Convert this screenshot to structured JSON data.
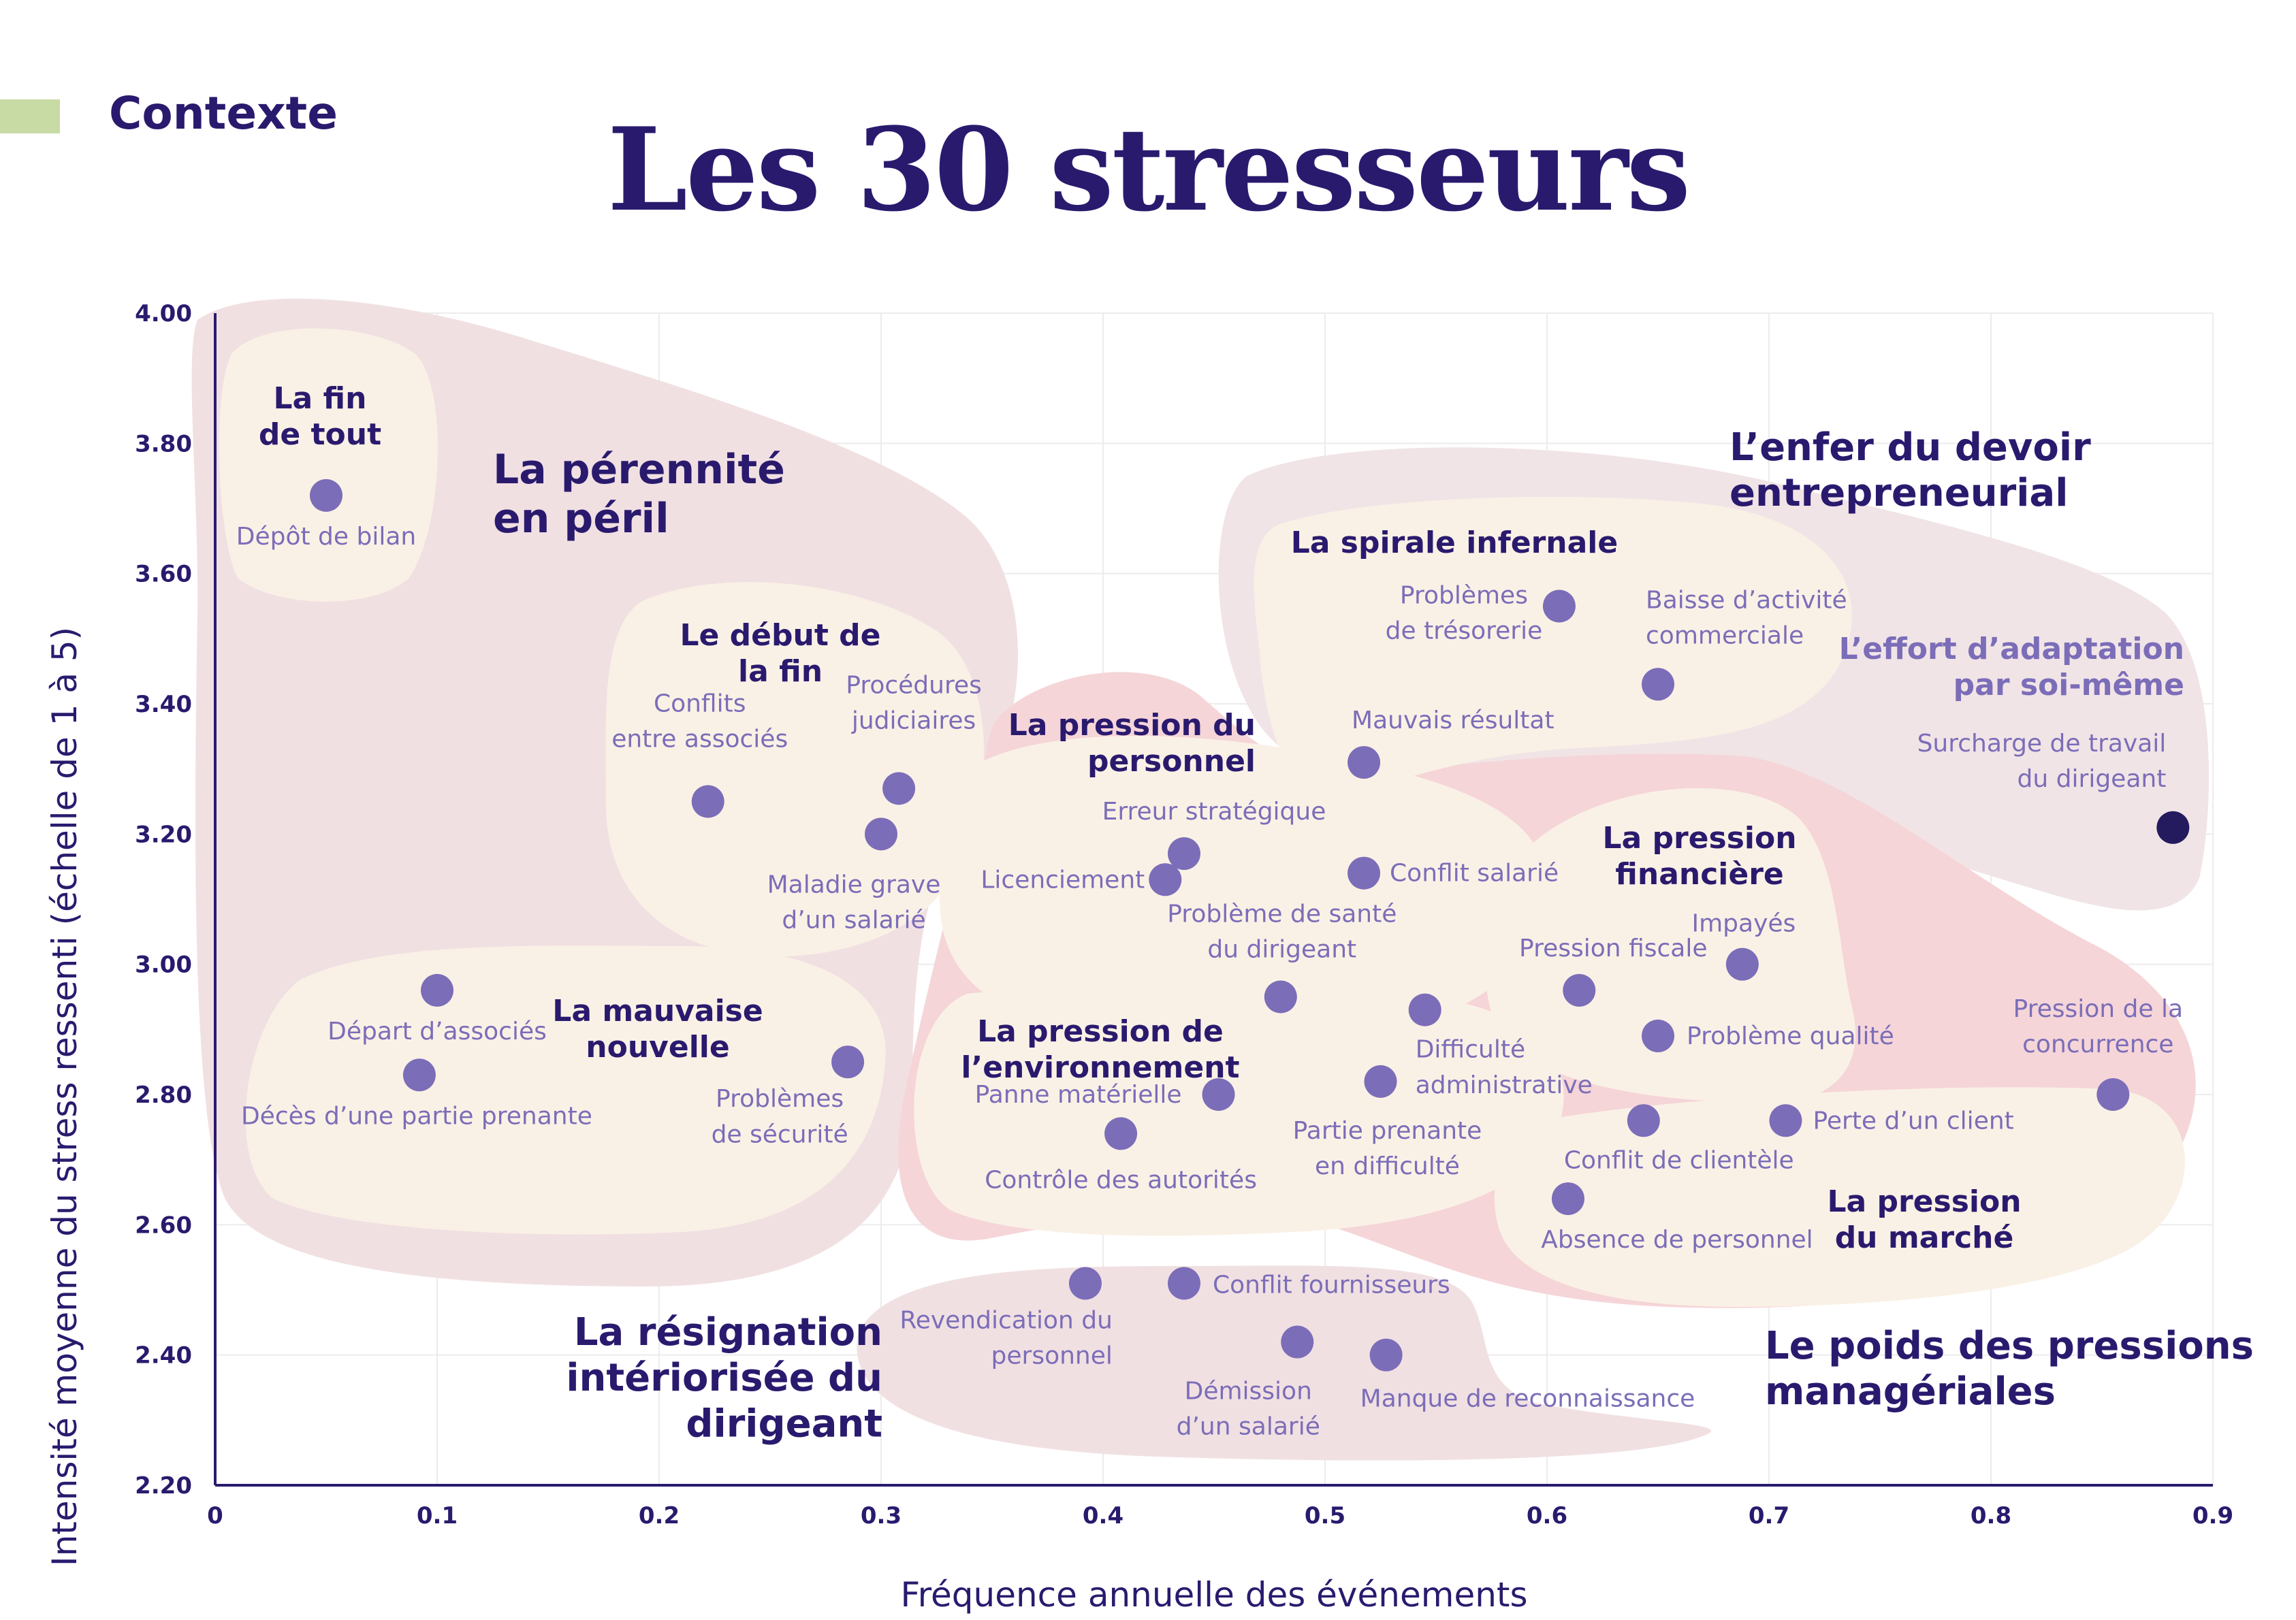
{
  "header": {
    "section": "Contexte",
    "title": "Les 30 stresseurs"
  },
  "colors": {
    "point": "#7b6db8",
    "point_highlight": "#231b5e",
    "text_dark": "#2a1a6e",
    "text_point": "#7b6db8",
    "region_outer": "#f1e0e2",
    "region_pink": "#f5d5d8",
    "region_inner": "#faf1e6",
    "grid": "#ececec",
    "section_bar": "#c9dba4"
  },
  "chart_data": {
    "type": "scatter",
    "title": "Les 30 stresseurs",
    "xlabel": "Fréquence annuelle des événements",
    "ylabel": "Intensité moyenne du stress ressenti (échelle de 1 à 5)",
    "xlim": [
      0,
      0.9
    ],
    "ylim": [
      2.2,
      4.0
    ],
    "x_ticks": [
      "0",
      "0.1",
      "0.2",
      "0.3",
      "0.4",
      "0.5",
      "0.6",
      "0.7",
      "0.8",
      "0.9"
    ],
    "y_ticks": [
      "2.20",
      "2.40",
      "2.60",
      "2.80",
      "3.00",
      "3.20",
      "3.40",
      "3.60",
      "3.80",
      "4.00"
    ],
    "grid": true,
    "points": [
      {
        "label": "Dépôt de bilan",
        "x": 0.05,
        "y": 3.72
      },
      {
        "label": "Conflits entre associés",
        "x": 0.222,
        "y": 3.25
      },
      {
        "label": "Procédures judiciaires",
        "x": 0.308,
        "y": 3.27
      },
      {
        "label": "Maladie grave d’un salarié",
        "x": 0.3,
        "y": 3.2
      },
      {
        "label": "Départ d’associés",
        "x": 0.1,
        "y": 2.96
      },
      {
        "label": "Décès d’une partie prenante",
        "x": 0.092,
        "y": 2.83
      },
      {
        "label": "Problèmes de sécurité",
        "x": 0.285,
        "y": 2.85
      },
      {
        "label": "Problèmes de trésorerie",
        "x": 0.6055,
        "y": 3.55
      },
      {
        "label": "Baisse d’activité commerciale",
        "x": 0.65,
        "y": 3.43
      },
      {
        "label": "Mauvais résultat",
        "x": 0.5175,
        "y": 3.31
      },
      {
        "label": "Surcharge de travail du dirigeant",
        "x": 0.882,
        "y": 3.21,
        "highlight": true
      },
      {
        "label": "Erreur stratégique",
        "x": 0.4365,
        "y": 3.17
      },
      {
        "label": "Licenciement",
        "x": 0.428,
        "y": 3.13
      },
      {
        "label": "Conflit salarié",
        "x": 0.5175,
        "y": 3.14
      },
      {
        "label": "Problème de santé du dirigeant",
        "x": 0.48,
        "y": 2.95
      },
      {
        "label": "Pression fiscale",
        "x": 0.6145,
        "y": 2.96
      },
      {
        "label": "Impayés",
        "x": 0.688,
        "y": 3.0
      },
      {
        "label": "Problème qualité",
        "x": 0.65,
        "y": 2.89
      },
      {
        "label": "Difficulté administrative",
        "x": 0.545,
        "y": 2.93
      },
      {
        "label": "Panne matérielle",
        "x": 0.452,
        "y": 2.8
      },
      {
        "label": "Partie prenante en difficulté",
        "x": 0.525,
        "y": 2.82
      },
      {
        "label": "Contrôle des autorités",
        "x": 0.408,
        "y": 2.74
      },
      {
        "label": "Pression de la concurrence",
        "x": 0.855,
        "y": 2.8
      },
      {
        "label": "Conflit de clientèle",
        "x": 0.6435,
        "y": 2.76
      },
      {
        "label": "Perte d’un client",
        "x": 0.7075,
        "y": 2.76
      },
      {
        "label": "Absence de personnel",
        "x": 0.6095,
        "y": 2.64
      },
      {
        "label": "Revendication du personnel",
        "x": 0.392,
        "y": 2.51
      },
      {
        "label": "Conflit fournisseurs",
        "x": 0.4365,
        "y": 2.51
      },
      {
        "label": "Démission d’un salarié",
        "x": 0.4875,
        "y": 2.42
      },
      {
        "label": "Manque de reconnaissance",
        "x": 0.5275,
        "y": 2.4
      }
    ],
    "groups": [
      {
        "name": "La pérennité en péril",
        "level": "main"
      },
      {
        "name": "La fin de tout",
        "level": "sub"
      },
      {
        "name": "Le début de la fin",
        "level": "sub"
      },
      {
        "name": "La mauvaise nouvelle",
        "level": "sub"
      },
      {
        "name": "L’enfer du devoir entrepreneurial",
        "level": "main"
      },
      {
        "name": "La spirale infernale",
        "level": "sub"
      },
      {
        "name": "L’effort d’adaptation par soi-même",
        "level": "sub"
      },
      {
        "name": "Le poids des pressions managériales",
        "level": "main"
      },
      {
        "name": "La pression du personnel",
        "level": "sub"
      },
      {
        "name": "La pression financière",
        "level": "sub"
      },
      {
        "name": "La pression de l’environnement",
        "level": "sub"
      },
      {
        "name": "La pression du marché",
        "level": "sub"
      },
      {
        "name": "La résignation intériorisée du dirigeant",
        "level": "main"
      }
    ]
  }
}
